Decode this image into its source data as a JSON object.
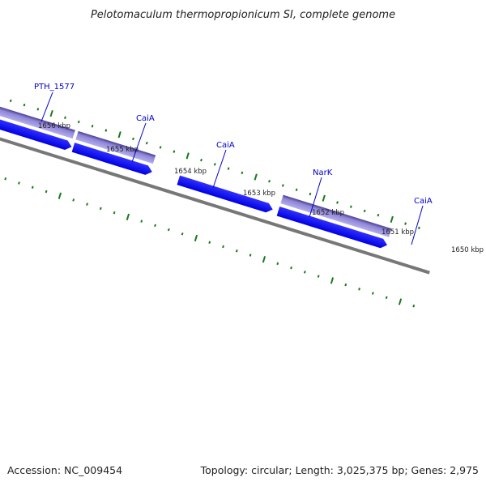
{
  "title": "Pelotomaculum thermopropionicum SI, complete genome",
  "footer": {
    "accession": "Accession: NC_009454",
    "summary": "Topology: circular; Length: 3,025,375 bp; Genes: 2,975"
  },
  "scale_labels": [
    "1656 kbp",
    "1655 kbp",
    "1654 kbp",
    "1653 kbp",
    "1652 kbp",
    "1651 kbp",
    "1650 kbp"
  ],
  "gene_labels": [
    "PTH_1577",
    "CaiA",
    "CaiA",
    "NarK",
    "CaiA"
  ],
  "colors": {
    "cds": "#0000ff",
    "cds_highlight": "#8a8aff",
    "gene_outline": "#4a3f8f",
    "gene_fill": "#8f86d9",
    "backbone": "#777777",
    "tick": "#1a7a1a",
    "label": "#0000cc"
  }
}
